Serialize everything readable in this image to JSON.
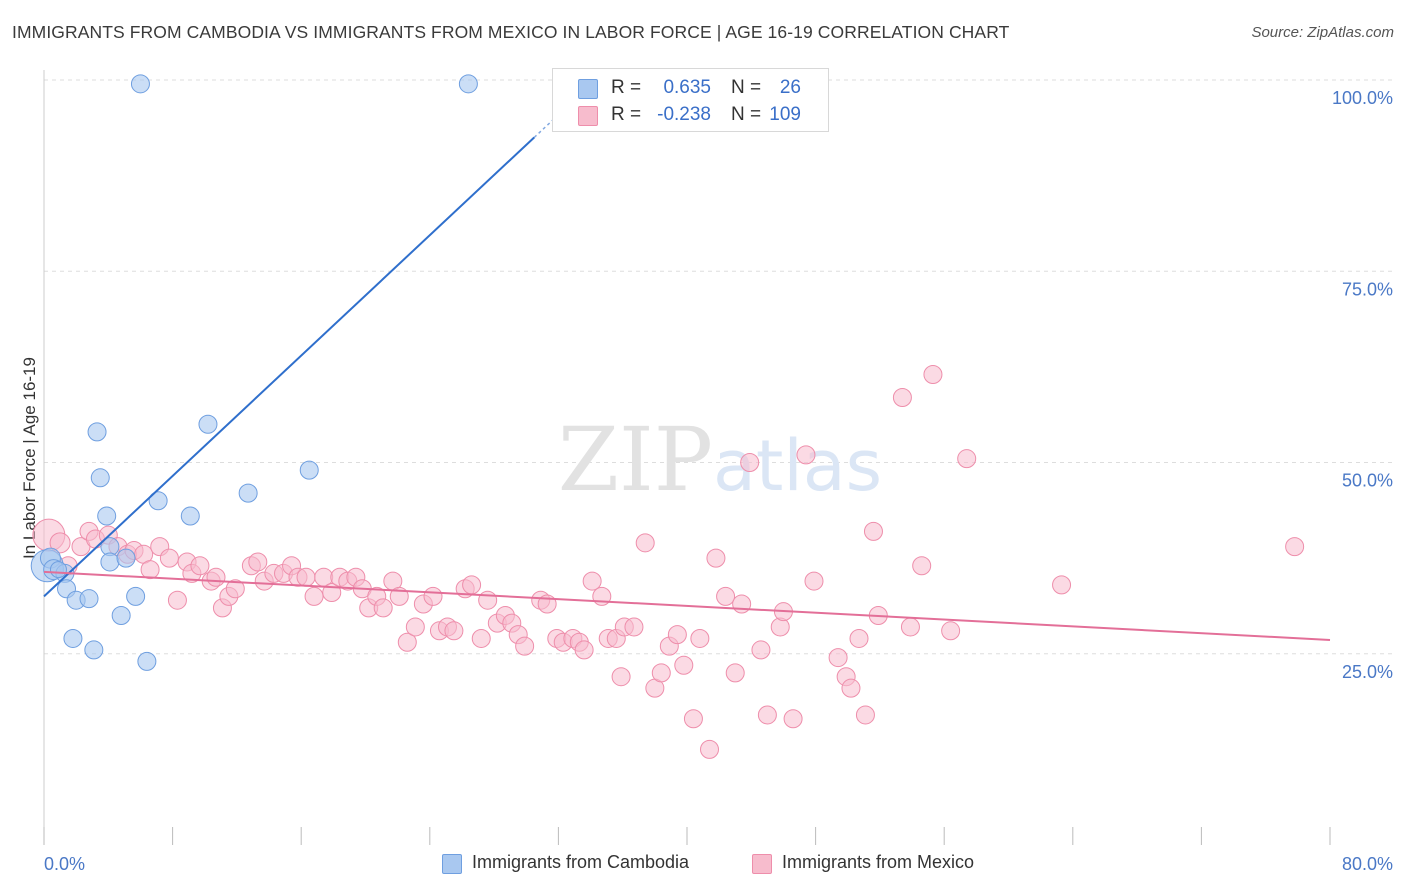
{
  "title": "IMMIGRANTS FROM CAMBODIA VS IMMIGRANTS FROM MEXICO IN LABOR FORCE | AGE 16-19 CORRELATION CHART",
  "source": "Source: ZipAtlas.com",
  "watermark": "ZIPatlas",
  "colors": {
    "cambodia_fill": "#a9c8f0",
    "cambodia_stroke": "#6f9fe0",
    "cambodia_line": "#2f6fcc",
    "mexico_fill": "#f7bccd",
    "mexico_stroke": "#ee8eab",
    "mexico_line": "#e36f98",
    "axis_text": "#4a78c6",
    "grid": "#dddddd"
  },
  "legend": {
    "rows": [
      {
        "r_label": "R =",
        "r_value": "0.635",
        "n_label": "N =",
        "n_value": "26"
      },
      {
        "r_label": "R =",
        "r_value": "-0.238",
        "n_label": "N =",
        "n_value": "109"
      }
    ]
  },
  "bottom_legend": {
    "cambodia": "Immigrants from Cambodia",
    "mexico": "Immigrants from Mexico"
  },
  "chart_data": {
    "type": "scatter",
    "title": "IMMIGRANTS FROM CAMBODIA VS IMMIGRANTS FROM MEXICO IN LABOR FORCE | AGE 16-19 CORRELATION CHART",
    "xlabel": "",
    "ylabel": "In Labor Force | Age 16-19",
    "xlim": [
      0,
      80
    ],
    "ylim": [
      0,
      102
    ],
    "x_tick_labels": [
      "0.0%",
      "80.0%"
    ],
    "y_ticks": [
      25,
      50,
      75,
      100
    ],
    "y_tick_labels": [
      "25.0%",
      "50.0%",
      "75.0%",
      "100.0%"
    ],
    "grid": true,
    "legend_position": "top-center",
    "series": [
      {
        "name": "Immigrants from Cambodia",
        "r": 0.635,
        "n": 26,
        "trend": {
          "x0": 0,
          "y0": 32.5,
          "x1": 30.5,
          "y1": 92.5,
          "dashed_to_x": 31.8
        },
        "points": [
          [
            0.2,
            36.5,
            16
          ],
          [
            0.4,
            37.5,
            10
          ],
          [
            0.6,
            36.0,
            10
          ],
          [
            1.3,
            35.5,
            9
          ],
          [
            1.4,
            33.5,
            9
          ],
          [
            1.8,
            27.0,
            9
          ],
          [
            2.0,
            32.0,
            9
          ],
          [
            2.8,
            32.2,
            9
          ],
          [
            3.1,
            25.5,
            9
          ],
          [
            3.3,
            54.0,
            9
          ],
          [
            3.5,
            48.0,
            9
          ],
          [
            3.9,
            43.0,
            9
          ],
          [
            4.1,
            39.0,
            9
          ],
          [
            4.1,
            37.0,
            9
          ],
          [
            4.8,
            30.0,
            9
          ],
          [
            5.1,
            37.5,
            9
          ],
          [
            5.7,
            32.5,
            9
          ],
          [
            6.0,
            99.5,
            9
          ],
          [
            6.4,
            24.0,
            9
          ],
          [
            7.1,
            45.0,
            9
          ],
          [
            9.1,
            43.0,
            9
          ],
          [
            10.2,
            55.0,
            9
          ],
          [
            12.7,
            46.0,
            9
          ],
          [
            16.5,
            49.0,
            9
          ],
          [
            26.4,
            99.5,
            9
          ],
          [
            0.9,
            36.0,
            8
          ]
        ]
      },
      {
        "name": "Immigrants from Mexico",
        "r": -0.238,
        "n": 109,
        "trend": {
          "x0": 0,
          "y0": 35.7,
          "x1": 80,
          "y1": 26.8
        },
        "points": [
          [
            0.3,
            40.5,
            16
          ],
          [
            1.0,
            39.5,
            10
          ],
          [
            1.5,
            36.5,
            9
          ],
          [
            2.3,
            39.0,
            9
          ],
          [
            2.8,
            41.0,
            9
          ],
          [
            3.2,
            40.0,
            9
          ],
          [
            4.0,
            40.5,
            9
          ],
          [
            4.6,
            39.0,
            9
          ],
          [
            5.2,
            38.0,
            9
          ],
          [
            5.6,
            38.5,
            9
          ],
          [
            6.2,
            38.0,
            9
          ],
          [
            6.6,
            36.0,
            9
          ],
          [
            7.2,
            39.0,
            9
          ],
          [
            7.8,
            37.5,
            9
          ],
          [
            8.3,
            32.0,
            9
          ],
          [
            8.9,
            37.0,
            9
          ],
          [
            9.2,
            35.5,
            9
          ],
          [
            9.7,
            36.5,
            9
          ],
          [
            10.4,
            34.5,
            9
          ],
          [
            10.7,
            35.0,
            9
          ],
          [
            11.1,
            31.0,
            9
          ],
          [
            11.5,
            32.5,
            9
          ],
          [
            11.9,
            33.5,
            9
          ],
          [
            12.9,
            36.5,
            9
          ],
          [
            13.3,
            37.0,
            9
          ],
          [
            13.7,
            34.5,
            9
          ],
          [
            14.3,
            35.5,
            9
          ],
          [
            14.9,
            35.5,
            9
          ],
          [
            15.4,
            36.5,
            9
          ],
          [
            15.8,
            35.0,
            9
          ],
          [
            16.3,
            35.0,
            9
          ],
          [
            16.8,
            32.5,
            9
          ],
          [
            17.4,
            35.0,
            9
          ],
          [
            17.9,
            33.0,
            9
          ],
          [
            18.4,
            35.0,
            9
          ],
          [
            18.9,
            34.5,
            9
          ],
          [
            19.4,
            35.0,
            9
          ],
          [
            19.8,
            33.5,
            9
          ],
          [
            20.2,
            31.0,
            9
          ],
          [
            20.7,
            32.5,
            9
          ],
          [
            21.1,
            31.0,
            9
          ],
          [
            21.7,
            34.5,
            9
          ],
          [
            22.1,
            32.5,
            9
          ],
          [
            22.6,
            26.5,
            9
          ],
          [
            23.1,
            28.5,
            9
          ],
          [
            23.6,
            31.5,
            9
          ],
          [
            24.2,
            32.5,
            9
          ],
          [
            24.6,
            28.0,
            9
          ],
          [
            25.1,
            28.5,
            9
          ],
          [
            25.5,
            28.0,
            9
          ],
          [
            26.2,
            33.5,
            9
          ],
          [
            26.6,
            34.0,
            9
          ],
          [
            27.2,
            27.0,
            9
          ],
          [
            27.6,
            32.0,
            9
          ],
          [
            28.2,
            29.0,
            9
          ],
          [
            28.7,
            30.0,
            9
          ],
          [
            29.1,
            29.0,
            9
          ],
          [
            29.5,
            27.5,
            9
          ],
          [
            29.9,
            26.0,
            9
          ],
          [
            30.9,
            32.0,
            9
          ],
          [
            31.3,
            31.5,
            9
          ],
          [
            31.9,
            27.0,
            9
          ],
          [
            32.3,
            26.5,
            9
          ],
          [
            32.9,
            27.0,
            9
          ],
          [
            33.3,
            26.5,
            9
          ],
          [
            33.6,
            25.5,
            9
          ],
          [
            34.1,
            34.5,
            9
          ],
          [
            34.7,
            32.5,
            9
          ],
          [
            35.1,
            27.0,
            9
          ],
          [
            35.6,
            27.0,
            9
          ],
          [
            36.1,
            28.5,
            9
          ],
          [
            35.9,
            22.0,
            9
          ],
          [
            36.7,
            28.5,
            9
          ],
          [
            37.4,
            39.5,
            9
          ],
          [
            38.0,
            20.5,
            9
          ],
          [
            38.4,
            22.5,
            9
          ],
          [
            38.9,
            26.0,
            9
          ],
          [
            39.4,
            27.5,
            9
          ],
          [
            39.8,
            23.5,
            9
          ],
          [
            40.4,
            16.5,
            9
          ],
          [
            40.8,
            27.0,
            9
          ],
          [
            41.4,
            12.5,
            9
          ],
          [
            41.8,
            37.5,
            9
          ],
          [
            42.4,
            32.5,
            9
          ],
          [
            43.0,
            22.5,
            9
          ],
          [
            43.4,
            31.5,
            9
          ],
          [
            43.9,
            50.0,
            9
          ],
          [
            44.6,
            25.5,
            9
          ],
          [
            45.0,
            17.0,
            9
          ],
          [
            45.8,
            28.5,
            9
          ],
          [
            46.0,
            30.5,
            9
          ],
          [
            46.6,
            16.5,
            9
          ],
          [
            47.4,
            51.0,
            9
          ],
          [
            47.9,
            34.5,
            9
          ],
          [
            49.4,
            24.5,
            9
          ],
          [
            49.9,
            22.0,
            9
          ],
          [
            50.2,
            20.5,
            9
          ],
          [
            50.7,
            27.0,
            9
          ],
          [
            51.1,
            17.0,
            9
          ],
          [
            51.6,
            41.0,
            9
          ],
          [
            51.9,
            30.0,
            9
          ],
          [
            53.4,
            58.5,
            9
          ],
          [
            53.9,
            28.5,
            9
          ],
          [
            54.6,
            36.5,
            9
          ],
          [
            55.3,
            61.5,
            9
          ],
          [
            56.4,
            28.0,
            9
          ],
          [
            57.4,
            50.5,
            9
          ],
          [
            63.3,
            34.0,
            9
          ],
          [
            77.8,
            39.0,
            9
          ]
        ]
      }
    ]
  }
}
